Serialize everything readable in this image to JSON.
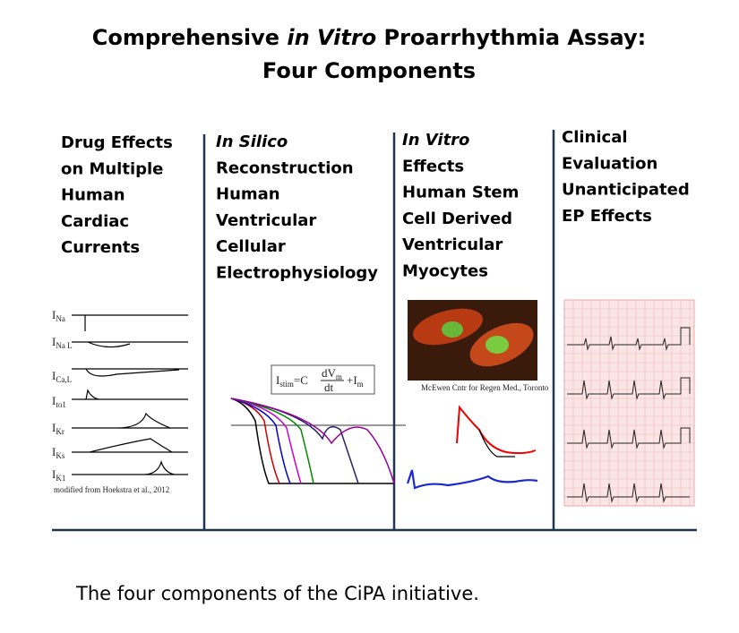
{
  "header": {
    "title": {
      "line1": {
        "before": "Comprehensive ",
        "italic": "in Vitro",
        "after": " Proarrhythmia Assay:"
      },
      "line2": "Four Components"
    }
  },
  "columns": [
    {
      "lines": [
        "Drug Effects",
        "on Multiple",
        "Human",
        "Cardiac",
        "Currents"
      ],
      "currents": [
        {
          "main": "I",
          "sub": "Na"
        },
        {
          "main": "I",
          "sub": "Na L"
        },
        {
          "main": "I",
          "sub": "Ca,L"
        },
        {
          "main": "I",
          "sub": "to1"
        },
        {
          "main": "I",
          "sub": "Kr"
        },
        {
          "main": "I",
          "sub": "Ks"
        },
        {
          "main": "I",
          "sub": "K1"
        }
      ],
      "credit": "modified from Hoekstra et al., 2012"
    },
    {
      "lines": [
        "In Silico",
        "Reconstruction",
        "Human",
        "Ventricular",
        "Cellular",
        "Electrophysiology"
      ],
      "equation": {
        "lhs": "I",
        "lhs_sub": "stim",
        "eq": "=C",
        "num": "dV",
        "num_sub": "m",
        "den": "dt",
        "plus": "+I",
        "plus_sub": "m"
      }
    },
    {
      "lines": [
        "In Vitro",
        "Effects",
        "Human Stem",
        "Cell Derived",
        "Ventricular",
        "Myocytes"
      ],
      "credit": "McEwen Cntr for Regen Med., Toronto"
    },
    {
      "lines": [
        "Clinical",
        "Evaluation",
        "Unanticipated",
        "EP Effects"
      ]
    }
  ],
  "caption": "The four components of the CiPA initiative."
}
